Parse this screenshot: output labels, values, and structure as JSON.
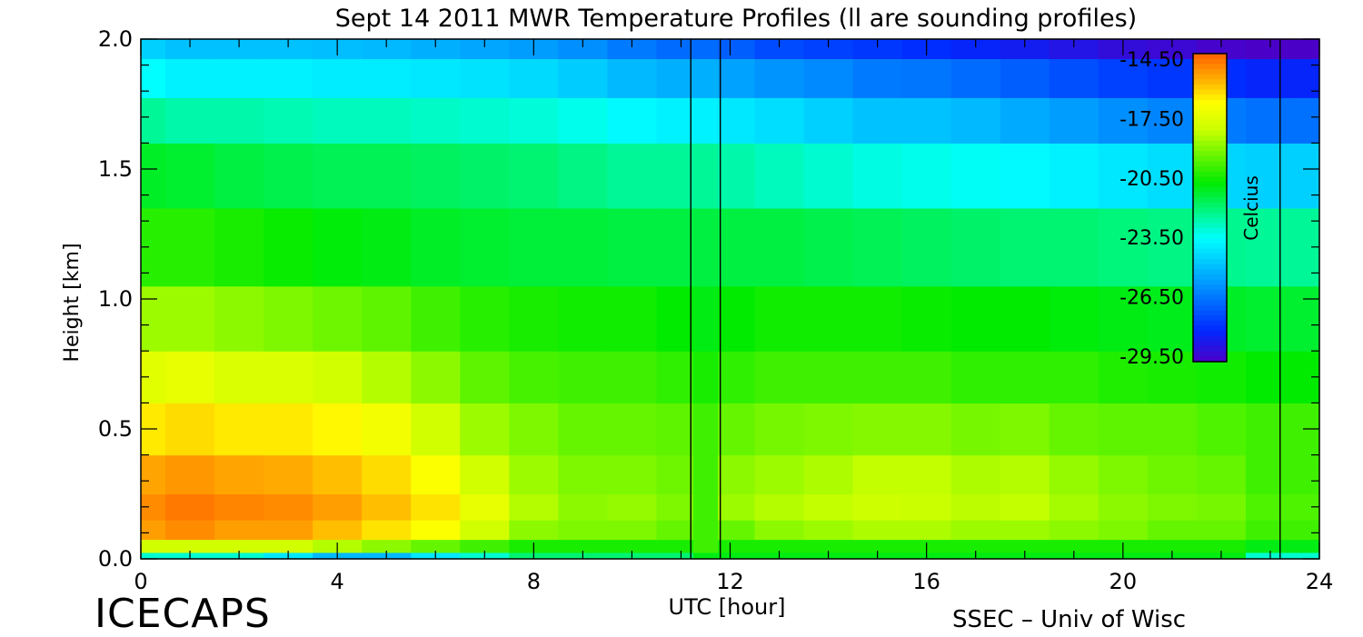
{
  "chart_data": {
    "type": "heatmap",
    "title": "Sept 14 2011 MWR Temperature Profiles (ll are sounding profiles)",
    "xlabel": "UTC [hour]",
    "ylabel": "Height [km]",
    "xlim": [
      0,
      24
    ],
    "ylim": [
      0,
      2.0
    ],
    "x_ticks": [
      "0",
      "4",
      "8",
      "12",
      "16",
      "20",
      "24"
    ],
    "y_ticks": [
      "0.0",
      "0.5",
      "1.0",
      "1.5",
      "2.0"
    ],
    "sounding_times_utc": [
      11.2,
      11.8,
      23.2
    ],
    "colorbar": {
      "label": "Celcius",
      "range": [
        -29.5,
        -14.5
      ],
      "ticks": [
        "-14.50",
        "-17.50",
        "-20.50",
        "-23.50",
        "-26.50",
        "-29.50"
      ]
    },
    "times": [
      0,
      1,
      2,
      3,
      4,
      5,
      6,
      7,
      8,
      9,
      10,
      11,
      11.5,
      12,
      13,
      14,
      15,
      16,
      17,
      18,
      19,
      20,
      21,
      22,
      23,
      24
    ],
    "heights": [
      0.0,
      0.05,
      0.1,
      0.2,
      0.3,
      0.5,
      0.7,
      0.9,
      1.2,
      1.5,
      1.7,
      1.85,
      2.0
    ],
    "temperature": [
      [
        -23,
        -23,
        -23,
        -24,
        -25,
        -25,
        -24,
        -23,
        -22,
        -22,
        -22,
        -22,
        -21,
        -21,
        -21,
        -21,
        -21,
        -21,
        -21,
        -21,
        -21,
        -21,
        -21,
        -21,
        -23,
        -23
      ],
      [
        -18,
        -18,
        -18,
        -18,
        -18.5,
        -19,
        -19.5,
        -20,
        -20.5,
        -20.5,
        -20.5,
        -20.5,
        -20,
        -20.5,
        -20.5,
        -20.5,
        -20.5,
        -20.5,
        -20.5,
        -20.5,
        -20.5,
        -20.5,
        -20.5,
        -20.5,
        -21,
        -21
      ],
      [
        -15.5,
        -15.2,
        -15.5,
        -15.5,
        -16,
        -16.5,
        -17,
        -18,
        -19,
        -19.2,
        -19.2,
        -19.5,
        -20,
        -19.5,
        -19,
        -18.8,
        -18.6,
        -18.6,
        -18.8,
        -18.8,
        -19,
        -19.2,
        -19.5,
        -19.5,
        -20,
        -20
      ],
      [
        -15.2,
        -14.9,
        -15.1,
        -15.2,
        -15.5,
        -16,
        -16.5,
        -17.5,
        -18.5,
        -19,
        -18.9,
        -19.2,
        -20,
        -18.8,
        -18.5,
        -18.3,
        -18.1,
        -18.2,
        -18.4,
        -18.3,
        -18.7,
        -19,
        -19.2,
        -19.3,
        -19.8,
        -19.8
      ],
      [
        -15.6,
        -15.4,
        -15.6,
        -15.7,
        -16,
        -16.4,
        -17,
        -18,
        -18.8,
        -19.2,
        -19.2,
        -19.4,
        -20,
        -19,
        -18.8,
        -18.6,
        -18.3,
        -18.3,
        -18.6,
        -18.5,
        -18.9,
        -19.2,
        -19.4,
        -19.5,
        -20,
        -20
      ],
      [
        -16.6,
        -16.4,
        -16.6,
        -16.6,
        -16.8,
        -17.2,
        -18,
        -18.8,
        -19.2,
        -19.5,
        -19.5,
        -19.6,
        -20,
        -19.5,
        -19.3,
        -19.2,
        -19.1,
        -19.1,
        -19.3,
        -19.2,
        -19.5,
        -19.6,
        -19.6,
        -19.8,
        -20,
        -20
      ],
      [
        -17.6,
        -17.5,
        -17.8,
        -17.8,
        -18,
        -18.5,
        -19,
        -19.6,
        -19.9,
        -20,
        -20,
        -20.2,
        -20.5,
        -20.2,
        -20,
        -20,
        -20,
        -20,
        -20.2,
        -20.2,
        -20.2,
        -20.4,
        -20.5,
        -20.6,
        -20.8,
        -20.8
      ],
      [
        -18.8,
        -18.8,
        -19,
        -19.2,
        -19.4,
        -19.6,
        -20,
        -20.3,
        -20.5,
        -20.6,
        -20.6,
        -20.8,
        -21,
        -20.8,
        -20.6,
        -20.6,
        -20.6,
        -20.7,
        -20.8,
        -20.8,
        -20.9,
        -21,
        -21.1,
        -21.2,
        -21.3,
        -21.3
      ],
      [
        -20.3,
        -20.3,
        -20.5,
        -20.7,
        -20.9,
        -21,
        -21.2,
        -21.3,
        -21.4,
        -21.4,
        -21.5,
        -21.5,
        -21.5,
        -21.5,
        -21.5,
        -21.6,
        -21.7,
        -21.8,
        -21.9,
        -22,
        -22,
        -22.1,
        -22.2,
        -22.3,
        -22.4,
        -22.4
      ],
      [
        -21.2,
        -21.3,
        -21.5,
        -21.6,
        -21.7,
        -21.7,
        -21.8,
        -21.9,
        -22,
        -22.2,
        -22.4,
        -22.4,
        -22.4,
        -22.6,
        -22.8,
        -23,
        -23.2,
        -23.3,
        -23.4,
        -23.6,
        -23.8,
        -24,
        -24.2,
        -24.4,
        -24.5,
        -24.5
      ],
      [
        -22.4,
        -22.6,
        -22.6,
        -22.7,
        -22.8,
        -22.8,
        -22.9,
        -23,
        -23.1,
        -23.3,
        -23.6,
        -23.8,
        -23.8,
        -24,
        -24.2,
        -24.5,
        -24.8,
        -24.8,
        -25,
        -25.3,
        -25.6,
        -25.9,
        -26.1,
        -26.3,
        -26.5,
        -26.5
      ],
      [
        -23.5,
        -23.8,
        -23.8,
        -23.8,
        -23.9,
        -23.9,
        -24,
        -24.1,
        -24.3,
        -24.6,
        -25,
        -25.2,
        -25.2,
        -25.5,
        -25.8,
        -26,
        -26.3,
        -26.4,
        -26.6,
        -26.9,
        -27.2,
        -27.5,
        -27.7,
        -27.9,
        -28.1,
        -28.1
      ],
      [
        -24.5,
        -24.8,
        -24.8,
        -24.8,
        -24.9,
        -25,
        -25.2,
        -25.4,
        -25.6,
        -25.9,
        -26.3,
        -26.6,
        -26.6,
        -26.9,
        -27.3,
        -27.5,
        -27.7,
        -27.9,
        -28.1,
        -28.4,
        -28.7,
        -29,
        -29.2,
        -29.4,
        -29.5,
        -29.5
      ]
    ]
  },
  "footer": {
    "left_logo": "ICECAPS",
    "right_credit": "SSEC – Univ of Wisc"
  }
}
